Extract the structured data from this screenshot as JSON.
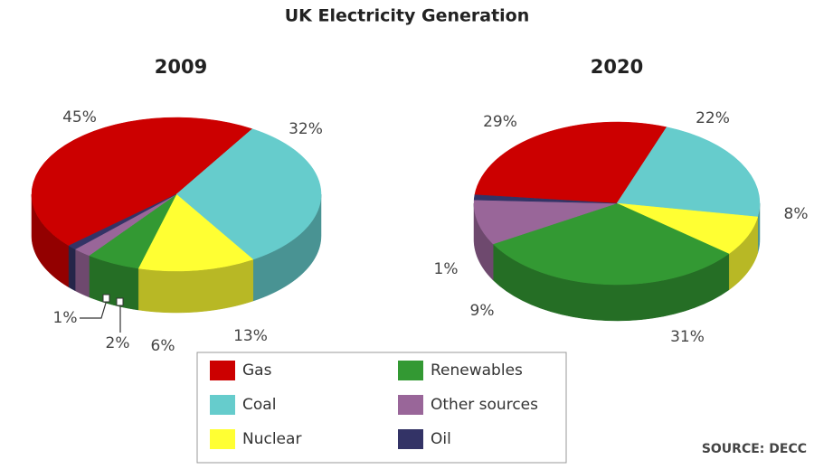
{
  "title": "UK Electricity Generation",
  "source": "SOURCE: DECC",
  "legend": {
    "position": "bottom",
    "items": [
      {
        "name": "Gas",
        "color": "#cc0000"
      },
      {
        "name": "Coal",
        "color": "#66cccc"
      },
      {
        "name": "Nuclear",
        "color": "#ffff33"
      },
      {
        "name": "Renewables",
        "color": "#339933"
      },
      {
        "name": "Other sources",
        "color": "#996699"
      },
      {
        "name": "Oil",
        "color": "#333366"
      }
    ]
  },
  "chart_data": [
    {
      "type": "pie",
      "title": "2009",
      "values": [
        45,
        32,
        13,
        6,
        2,
        1
      ],
      "value_labels": [
        "45%",
        "32%",
        "13%",
        "6%",
        "2%",
        "1%"
      ]
    },
    {
      "type": "pie",
      "title": "2020",
      "values": [
        29,
        22,
        8,
        31,
        9,
        1
      ],
      "value_labels": [
        "29%",
        "22%",
        "8%",
        "31%",
        "9%",
        "1%"
      ]
    }
  ]
}
